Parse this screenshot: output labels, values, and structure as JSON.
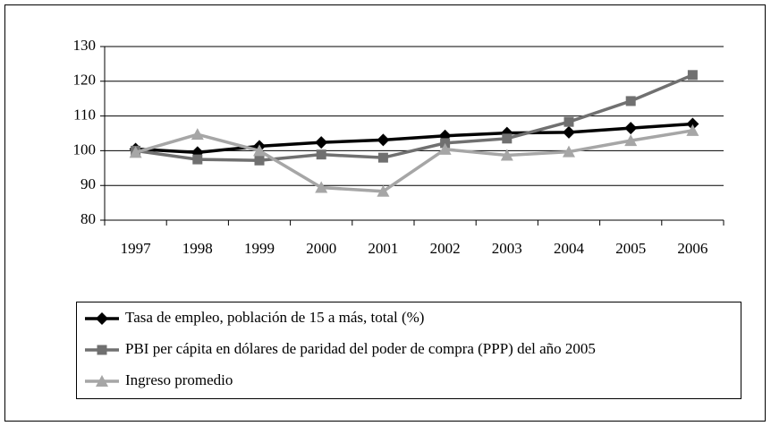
{
  "chart_data": {
    "type": "line",
    "categories": [
      "1997",
      "1998",
      "1999",
      "2000",
      "2001",
      "2002",
      "2003",
      "2004",
      "2005",
      "2006"
    ],
    "series": [
      {
        "name": "Tasa de empleo, población de 15 a más, total (%)",
        "color": "#000000",
        "marker": "diamond",
        "values": [
          100.5,
          99.5,
          101.3,
          102.4,
          103.1,
          104.3,
          105.1,
          105.3,
          106.5,
          107.7
        ]
      },
      {
        "name": "PBI per cápita en dólares de paridad del poder de compra (PPP) del año 2005",
        "color": "#707070",
        "marker": "square",
        "values": [
          100,
          97.5,
          97.2,
          98.9,
          98,
          102.2,
          103.5,
          108.3,
          114.3,
          121.8
        ]
      },
      {
        "name": "Ingreso promedio",
        "color": "#a6a6a6",
        "marker": "triangle",
        "values": [
          99.5,
          104.7,
          100,
          89.4,
          88.3,
          100.4,
          98.7,
          99.7,
          102.9,
          105.8
        ]
      }
    ],
    "ylim": [
      80,
      130
    ],
    "yticks": [
      80,
      90,
      100,
      110,
      120,
      130
    ],
    "grid": true,
    "legend": "bottom"
  }
}
